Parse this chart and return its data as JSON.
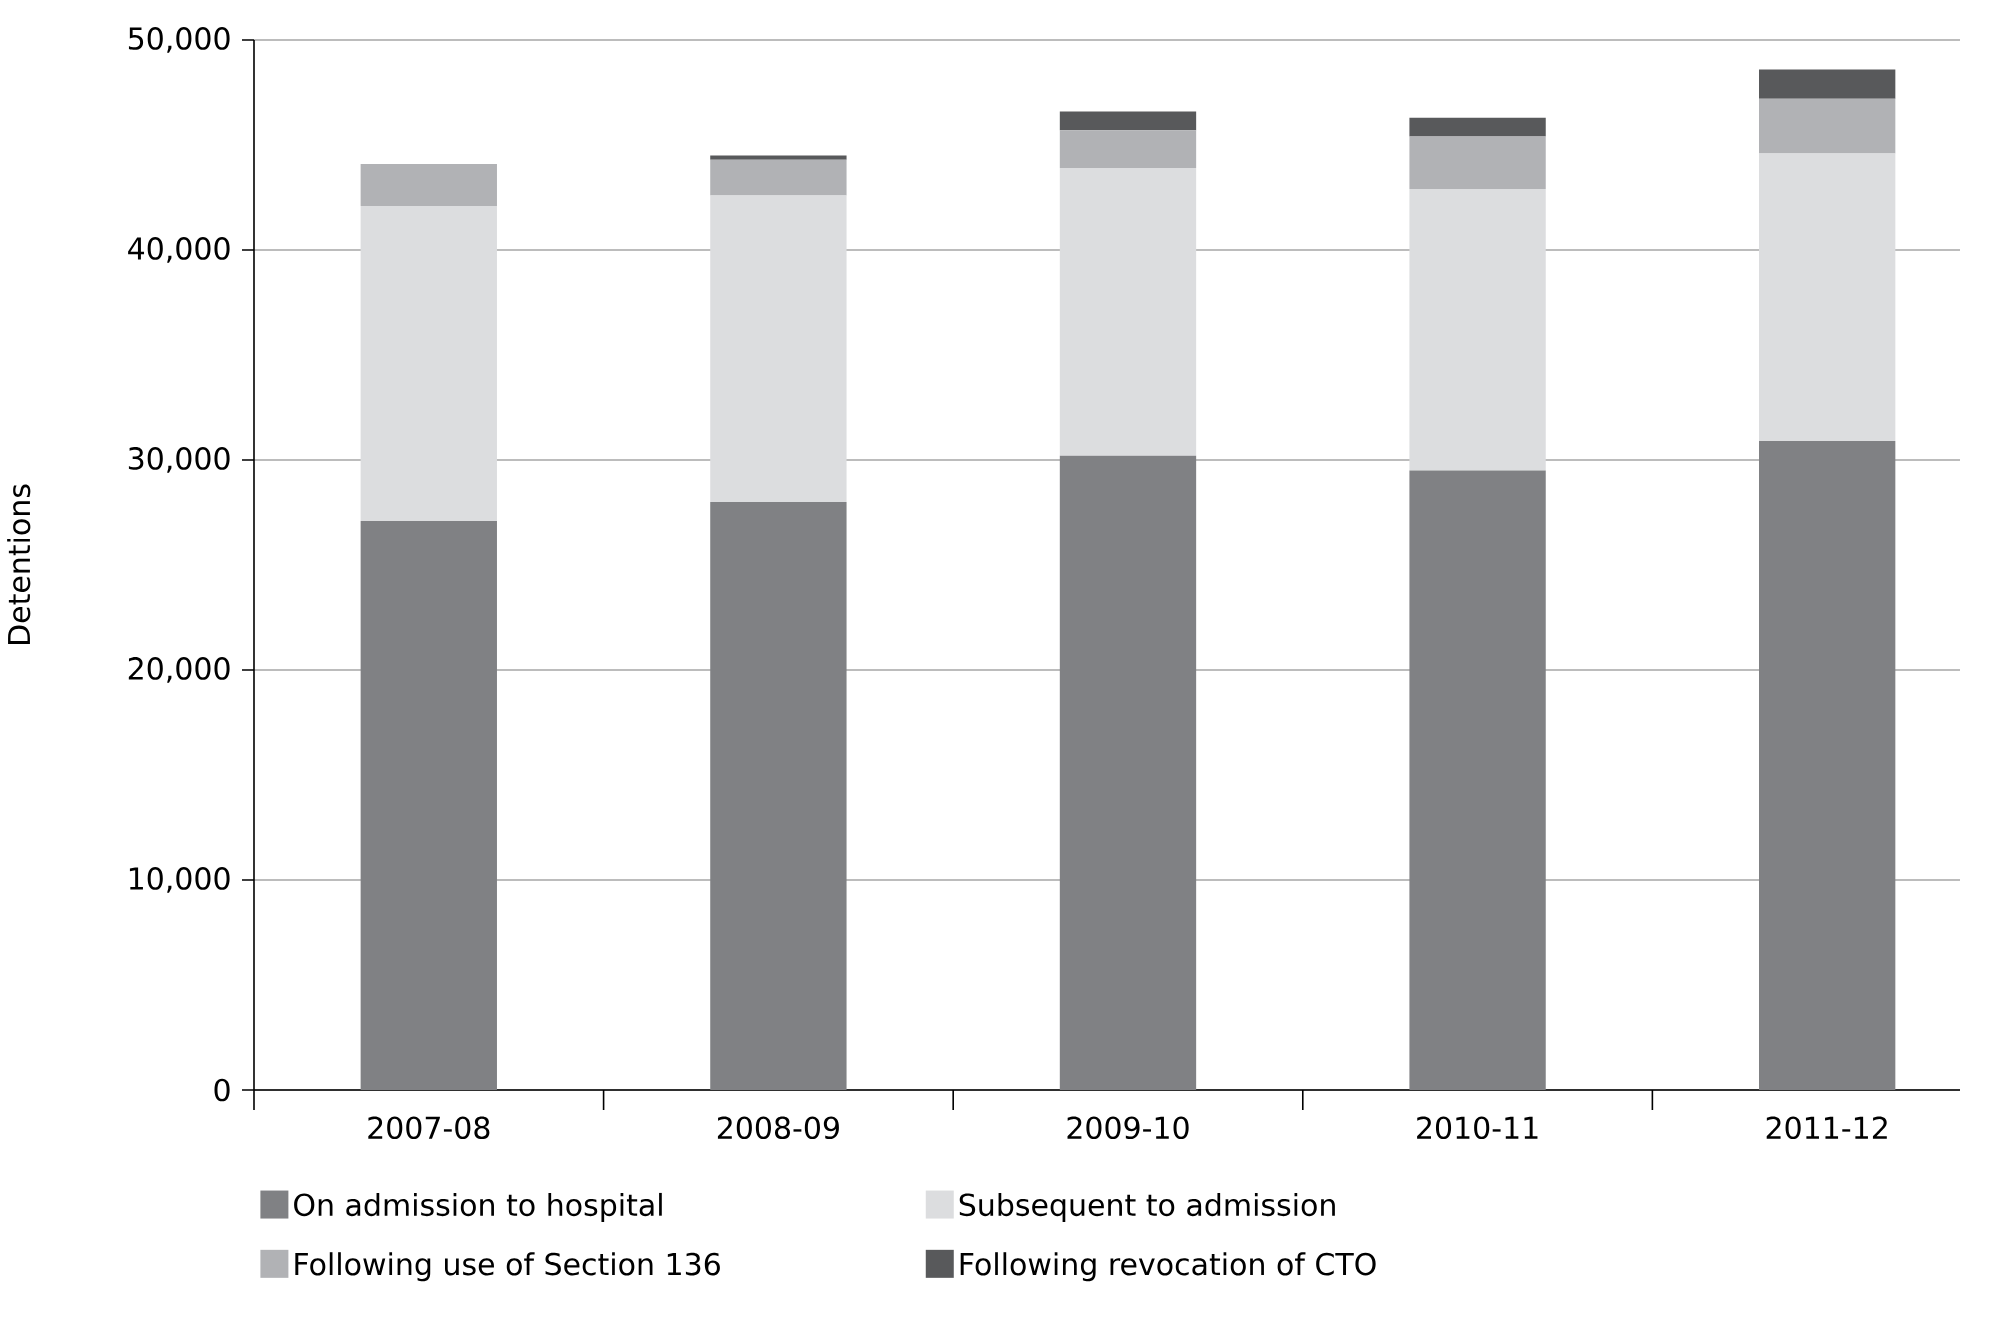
{
  "chart_data": {
    "type": "bar",
    "stacked": true,
    "ylabel": "Detentions",
    "categories": [
      "2007-08",
      "2008-09",
      "2009-10",
      "2010-11",
      "2011-12"
    ],
    "series": [
      {
        "name": "On admission to hospital",
        "color": "#808184",
        "values": [
          27100,
          28000,
          30200,
          29500,
          30900
        ]
      },
      {
        "name": "Subsequent to admission",
        "color": "#dcdddf",
        "values": [
          15000,
          14600,
          13700,
          13400,
          13700
        ]
      },
      {
        "name": "Following use of Section 136",
        "color": "#b1b2b5",
        "values": [
          2000,
          1700,
          1800,
          2500,
          2600
        ]
      },
      {
        "name": "Following revocation of CTO",
        "color": "#58595b",
        "values": [
          0,
          200,
          900,
          900,
          1400
        ]
      }
    ],
    "ylim": [
      0,
      50000
    ],
    "yticks": [
      {
        "value": 0,
        "label": "0"
      },
      {
        "value": 10000,
        "label": "10,000"
      },
      {
        "value": 20000,
        "label": "20,000"
      },
      {
        "value": 30000,
        "label": "30,000"
      },
      {
        "value": 40000,
        "label": "40,000"
      },
      {
        "value": 50000,
        "label": "50,000"
      }
    ],
    "grid": "y",
    "legend": "bottom"
  }
}
